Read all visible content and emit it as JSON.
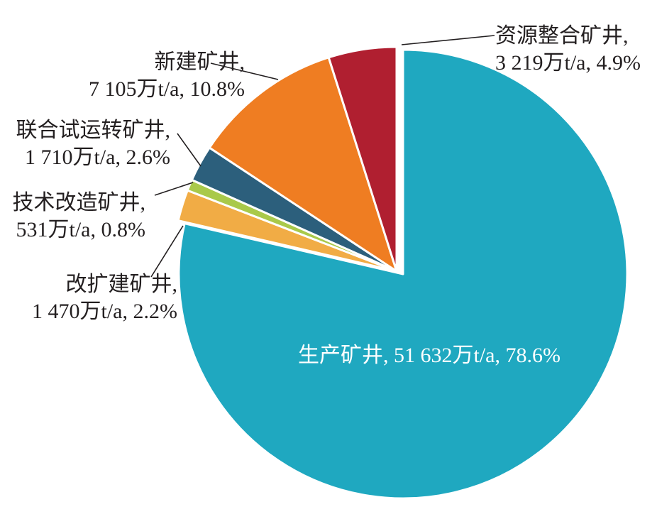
{
  "chart_data": {
    "type": "pie",
    "title": "",
    "unit": "万t/a",
    "slices": [
      {
        "name": "生产矿井",
        "value": 51632,
        "value_label": "51 632万t/a",
        "percent": 78.6,
        "percent_label": "78.6%",
        "color": "#1fa8c0"
      },
      {
        "name": "改扩建矿井",
        "value": 1470,
        "value_label": "1 470万t/a",
        "percent": 2.2,
        "percent_label": "2.2%",
        "color": "#f1ac45"
      },
      {
        "name": "技术改造矿井",
        "value": 531,
        "value_label": "531万t/a",
        "percent": 0.8,
        "percent_label": "0.8%",
        "color": "#a9c94a"
      },
      {
        "name": "联合试运转矿井",
        "value": 1710,
        "value_label": "1 710万t/a",
        "percent": 2.6,
        "percent_label": "2.6%",
        "color": "#2c5f7c"
      },
      {
        "name": "新建矿井",
        "value": 7105,
        "value_label": "7 105万t/a",
        "percent": 10.8,
        "percent_label": "10.8%",
        "color": "#ef7d22"
      },
      {
        "name": "资源整合矿井",
        "value": 3219,
        "value_label": "3 219万t/a",
        "percent": 4.9,
        "percent_label": "4.9%",
        "color": "#b01f30"
      }
    ]
  }
}
